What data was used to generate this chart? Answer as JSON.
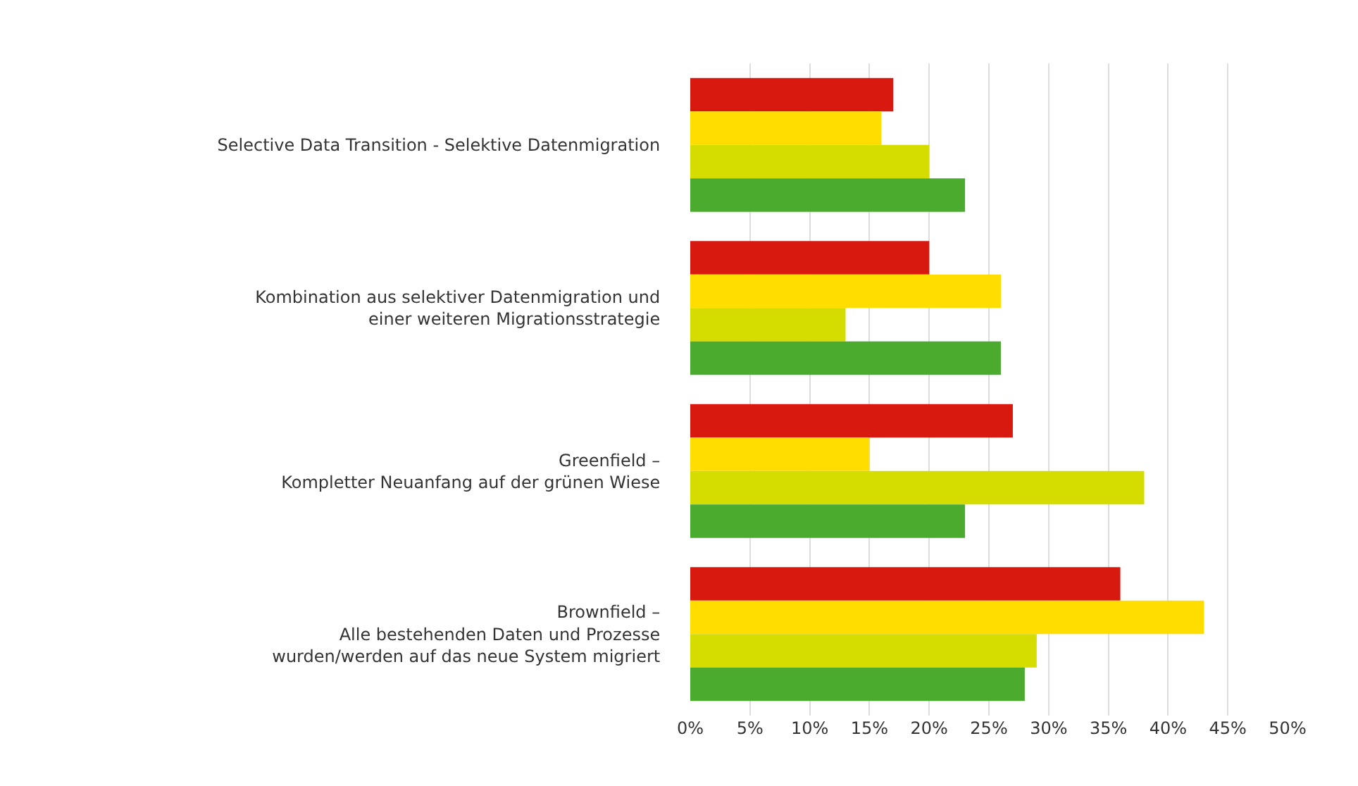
{
  "chart_data": {
    "type": "bar",
    "orientation": "horizontal",
    "categories": [
      "Selective Data Transition - Selektive Datenmigration",
      "Kombination aus selektiver Datenmigration und\neiner weiteren Migrationsstrategie",
      "Greenfield –\nKompletter Neuanfang auf der grünen Wiese",
      "Brownfield –\nAlle bestehenden Daten und Prozesse\nwurden/werden auf das neue System migriert"
    ],
    "series": [
      {
        "color": "#d7190f",
        "values": [
          17,
          20,
          27,
          36
        ]
      },
      {
        "color": "#ffdd00",
        "values": [
          16,
          26,
          15,
          43
        ]
      },
      {
        "color": "#d4dc00",
        "values": [
          20,
          13,
          38,
          29
        ]
      },
      {
        "color": "#4aab2e",
        "values": [
          23,
          26,
          23,
          28
        ]
      }
    ],
    "xlim": [
      0,
      50
    ],
    "xticks": [
      {
        "value": 0,
        "label": "0%"
      },
      {
        "value": 5,
        "label": "5%"
      },
      {
        "value": 10,
        "label": "10%"
      },
      {
        "value": 15,
        "label": "15%"
      },
      {
        "value": 20,
        "label": "20%"
      },
      {
        "value": 25,
        "label": "25%"
      },
      {
        "value": 30,
        "label": "30%"
      },
      {
        "value": 35,
        "label": "35%"
      },
      {
        "value": 40,
        "label": "40%"
      },
      {
        "value": 45,
        "label": "45%"
      },
      {
        "value": 50,
        "label": "50%"
      }
    ],
    "grid": "x"
  }
}
